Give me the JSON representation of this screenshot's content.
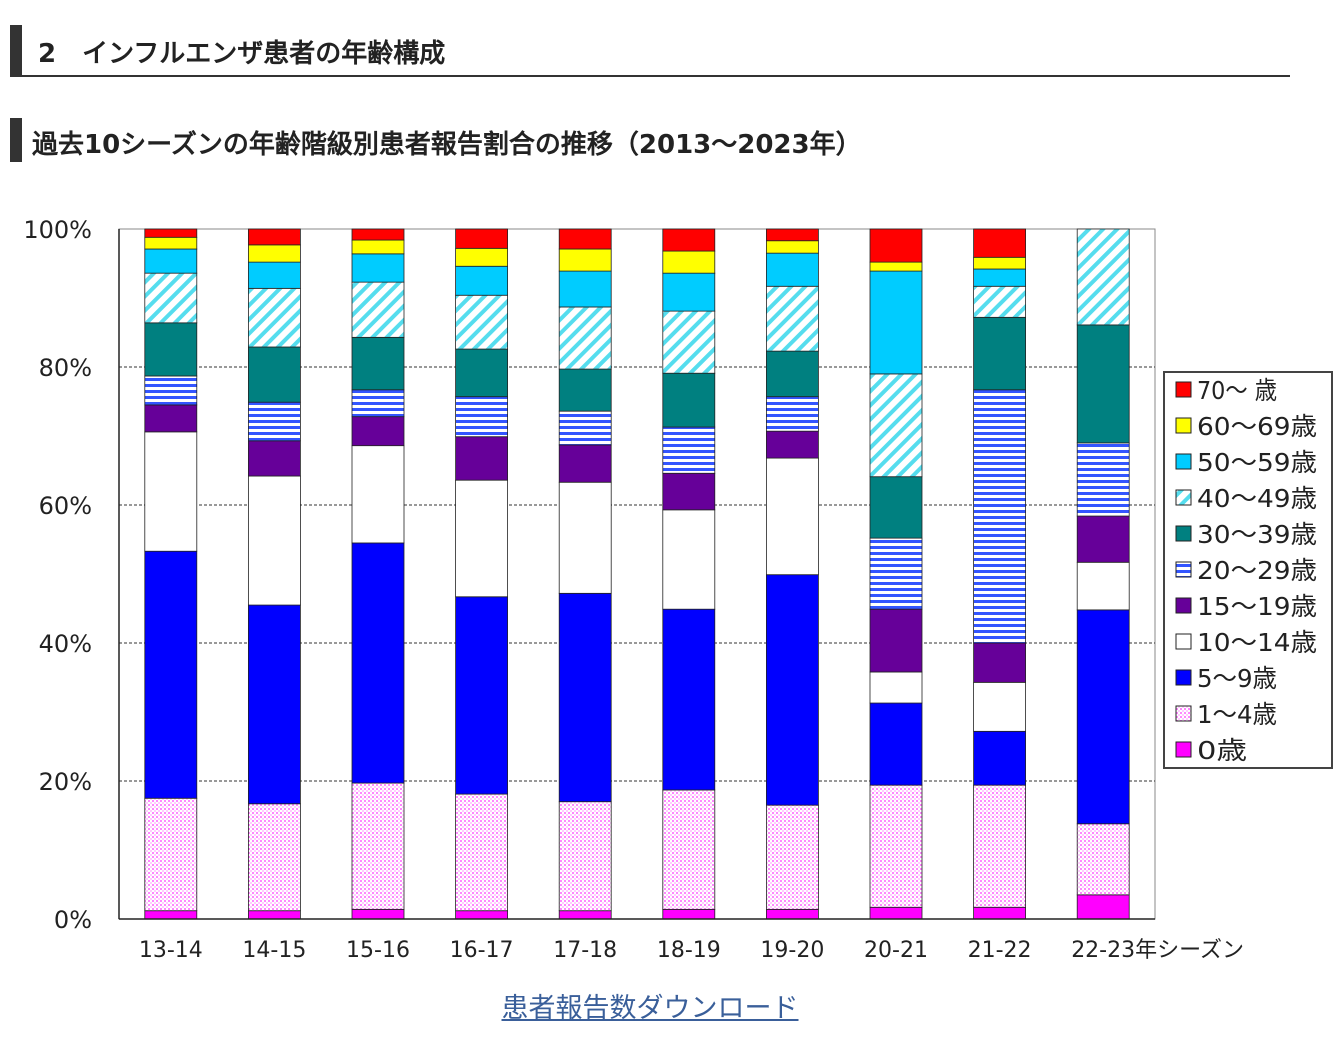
{
  "section_heading": "2　インフルエンザ患者の年齢構成",
  "chart_data": {
    "type": "bar",
    "stacked": true,
    "percent": true,
    "title": "過去10シーズンの年齢階級別患者報告割合の推移（2013〜2023年）",
    "categories": [
      "13-14",
      "14-15",
      "15-16",
      "16-17",
      "17-18",
      "18-19",
      "19-20",
      "20-21",
      "21-22",
      "22-23"
    ],
    "x_suffix": "年シーズン",
    "ylim": [
      0,
      100
    ],
    "yticks": [
      0,
      20,
      40,
      60,
      80,
      100
    ],
    "ytick_labels": [
      "0%",
      "20%",
      "40%",
      "60%",
      "80%",
      "100%"
    ],
    "grid": "dashed horizontal",
    "legend_position": "right",
    "series": [
      {
        "name": "0歳",
        "color": "#ff00ff",
        "pattern": "solid",
        "values": [
          1.2,
          1.2,
          1.4,
          1.2,
          1.2,
          1.4,
          1.4,
          1.7,
          1.7,
          3.5
        ]
      },
      {
        "name": "1〜4歳",
        "color": "#ff99ff",
        "pattern": "dots",
        "values": [
          16.3,
          15.5,
          18.3,
          16.9,
          15.8,
          17.3,
          15.1,
          17.7,
          17.7,
          10.3
        ]
      },
      {
        "name": "5〜9歳",
        "color": "#0000ff",
        "pattern": "solid",
        "values": [
          35.8,
          28.8,
          34.8,
          28.6,
          30.2,
          26.2,
          33.4,
          11.9,
          7.8,
          31.0
        ]
      },
      {
        "name": "10〜14歳",
        "color": "#ffffff",
        "pattern": "solid",
        "values": [
          17.3,
          18.7,
          14.1,
          16.9,
          16.1,
          14.4,
          16.9,
          4.5,
          7.1,
          6.9
        ]
      },
      {
        "name": "15〜19歳",
        "color": "#660099",
        "pattern": "solid",
        "values": [
          3.9,
          5.1,
          4.2,
          6.3,
          5.4,
          5.3,
          3.9,
          9.1,
          5.7,
          6.7
        ]
      },
      {
        "name": "20〜29歳",
        "color": "#3355ff",
        "pattern": "hstripes",
        "values": [
          4.2,
          5.6,
          3.9,
          5.8,
          4.9,
          6.7,
          5.0,
          10.3,
          36.7,
          10.6
        ]
      },
      {
        "name": "30〜39歳",
        "color": "#008080",
        "pattern": "solid",
        "values": [
          7.7,
          8.0,
          7.6,
          6.9,
          6.1,
          7.8,
          6.6,
          8.9,
          10.5,
          17.1
        ]
      },
      {
        "name": "40〜49歳",
        "color": "#66ddee",
        "pattern": "diagonal",
        "values": [
          7.2,
          8.5,
          8.0,
          7.8,
          9.0,
          9.0,
          9.4,
          14.9,
          4.5,
          13.9
        ]
      },
      {
        "name": "50〜59歳",
        "color": "#00ccff",
        "pattern": "solid",
        "values": [
          3.5,
          3.8,
          4.1,
          4.2,
          5.2,
          5.5,
          4.8,
          14.9,
          2.5,
          0
        ]
      },
      {
        "name": "60〜69歳",
        "color": "#ffff00",
        "pattern": "solid",
        "values": [
          1.7,
          2.5,
          2.0,
          2.6,
          3.2,
          3.2,
          1.8,
          1.3,
          1.7,
          0
        ]
      },
      {
        "name": "70〜 歳",
        "color": "#ff0000",
        "pattern": "solid",
        "values": [
          1.2,
          2.3,
          1.6,
          2.8,
          2.9,
          3.2,
          1.7,
          4.8,
          4.1,
          0
        ]
      }
    ]
  },
  "download_link": "患者報告数ダウンロード"
}
